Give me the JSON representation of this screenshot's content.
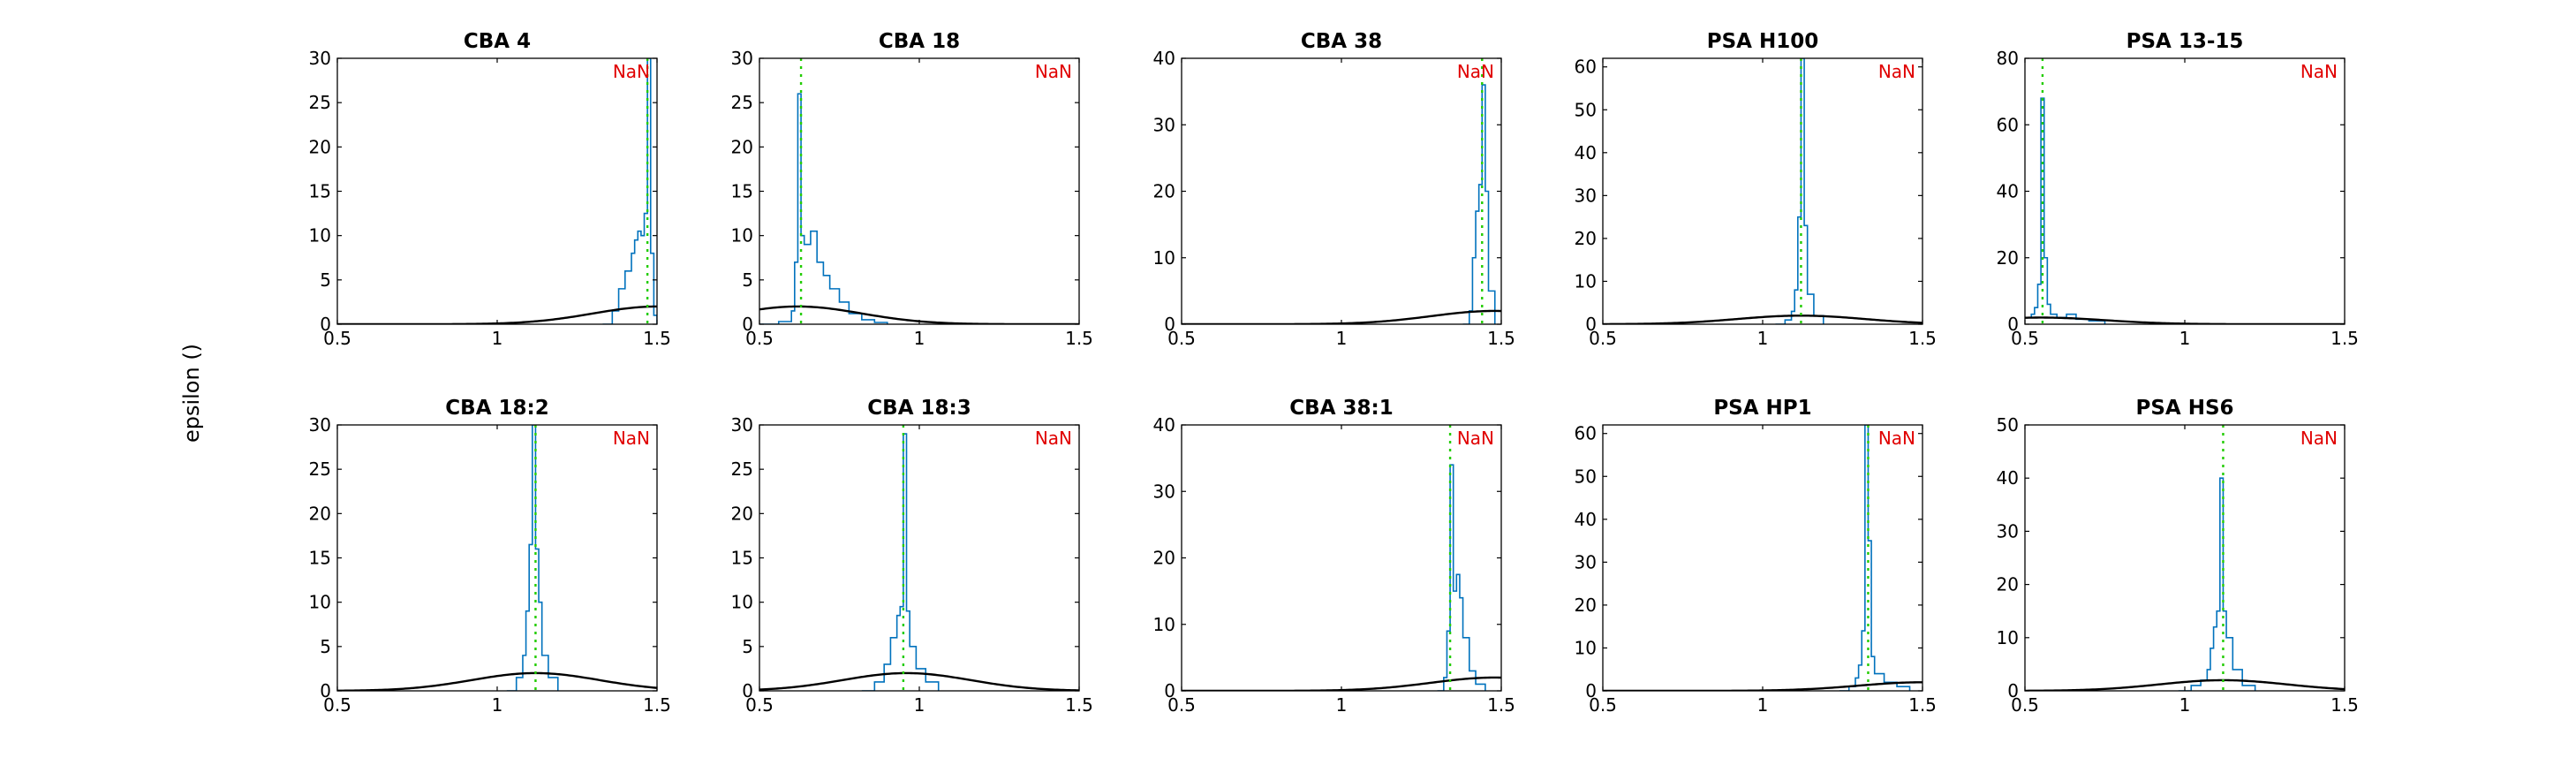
{
  "figure": {
    "ylabel": "epsilon ()"
  },
  "chart_data": [
    {
      "type": "line",
      "title": "CBA 4",
      "annotation": "NaN",
      "xlim": [
        0.5,
        1.5
      ],
      "ylim": [
        0,
        30
      ],
      "xticks": [
        0.5,
        1,
        1.5
      ],
      "xtick_labels": [
        "0.5",
        "1",
        "1.5"
      ],
      "yticks": [
        0,
        5,
        10,
        15,
        20,
        25,
        30
      ],
      "ytick_labels": [
        "0",
        "5",
        "10",
        "15",
        "20",
        "25",
        "30"
      ],
      "series": [
        {
          "kind": "hist",
          "color": "#0072bd",
          "x": [
            1.33,
            1.36,
            1.38,
            1.4,
            1.42,
            1.43,
            1.44,
            1.45,
            1.46,
            1.47,
            1.48,
            1.49,
            1.5
          ],
          "y": [
            0,
            1.5,
            4,
            6,
            8,
            9.5,
            10.5,
            10,
            12.5,
            30,
            8,
            1,
            0
          ]
        },
        {
          "kind": "gaussian",
          "color": "#000000",
          "mean": 1.5,
          "sd": 0.2,
          "peak": 2
        },
        {
          "kind": "vline",
          "color": "#22cc00",
          "x": 1.47
        }
      ]
    },
    {
      "type": "line",
      "title": "CBA 18",
      "annotation": "NaN",
      "xlim": [
        0.5,
        1.5
      ],
      "ylim": [
        0,
        30
      ],
      "xticks": [
        0.5,
        1,
        1.5
      ],
      "xtick_labels": [
        "0.5",
        "1",
        "1.5"
      ],
      "yticks": [
        0,
        5,
        10,
        15,
        20,
        25,
        30
      ],
      "ytick_labels": [
        "0",
        "5",
        "10",
        "15",
        "20",
        "25",
        "30"
      ],
      "series": [
        {
          "kind": "hist",
          "color": "#0072bd",
          "x": [
            0.5,
            0.56,
            0.6,
            0.61,
            0.62,
            0.63,
            0.64,
            0.66,
            0.68,
            0.7,
            0.72,
            0.75,
            0.78,
            0.82,
            0.86,
            0.9
          ],
          "y": [
            0,
            0.3,
            1.5,
            7,
            26,
            10,
            9,
            10.5,
            7,
            5.5,
            4,
            2.5,
            1.2,
            0.5,
            0.2,
            0
          ]
        },
        {
          "kind": "gaussian",
          "color": "#000000",
          "mean": 0.62,
          "sd": 0.2,
          "peak": 2
        },
        {
          "kind": "vline",
          "color": "#22cc00",
          "x": 0.63
        }
      ]
    },
    {
      "type": "line",
      "title": "CBA 38",
      "annotation": "NaN",
      "xlim": [
        0.5,
        1.5
      ],
      "ylim": [
        0,
        40
      ],
      "xticks": [
        0.5,
        1,
        1.5
      ],
      "xtick_labels": [
        "0.5",
        "1",
        "1.5"
      ],
      "yticks": [
        0,
        10,
        20,
        30,
        40
      ],
      "ytick_labels": [
        "0",
        "10",
        "20",
        "30",
        "40"
      ],
      "series": [
        {
          "kind": "hist",
          "color": "#0072bd",
          "x": [
            1.38,
            1.4,
            1.41,
            1.42,
            1.43,
            1.44,
            1.45,
            1.46,
            1.48
          ],
          "y": [
            0,
            2,
            10,
            17,
            21,
            36,
            20,
            5,
            0
          ]
        },
        {
          "kind": "gaussian",
          "color": "#000000",
          "mean": 1.48,
          "sd": 0.2,
          "peak": 2
        },
        {
          "kind": "vline",
          "color": "#22cc00",
          "x": 1.44
        }
      ]
    },
    {
      "type": "line",
      "title": "PSA H100",
      "annotation": "NaN",
      "xlim": [
        0.5,
        1.5
      ],
      "ylim": [
        0,
        62
      ],
      "xticks": [
        0.5,
        1,
        1.5
      ],
      "xtick_labels": [
        "0.5",
        "1",
        "1.5"
      ],
      "yticks": [
        0,
        10,
        20,
        30,
        40,
        50,
        60
      ],
      "ytick_labels": [
        "0",
        "10",
        "20",
        "30",
        "40",
        "50",
        "60"
      ],
      "series": [
        {
          "kind": "hist",
          "color": "#0072bd",
          "x": [
            1.04,
            1.07,
            1.09,
            1.1,
            1.11,
            1.12,
            1.13,
            1.14,
            1.16,
            1.19
          ],
          "y": [
            0,
            1,
            3,
            8,
            25,
            62,
            23,
            7,
            2,
            0
          ]
        },
        {
          "kind": "gaussian",
          "color": "#000000",
          "mean": 1.12,
          "sd": 0.2,
          "peak": 2
        },
        {
          "kind": "vline",
          "color": "#22cc00",
          "x": 1.12
        }
      ]
    },
    {
      "type": "line",
      "title": "PSA 13-15",
      "annotation": "NaN",
      "xlim": [
        0.5,
        1.5
      ],
      "ylim": [
        0,
        80
      ],
      "xticks": [
        0.5,
        1,
        1.5
      ],
      "xtick_labels": [
        "0.5",
        "1",
        "1.5"
      ],
      "yticks": [
        0,
        20,
        40,
        60,
        80
      ],
      "ytick_labels": [
        "0",
        "20",
        "40",
        "60",
        "80"
      ],
      "series": [
        {
          "kind": "hist",
          "color": "#0072bd",
          "x": [
            0.5,
            0.52,
            0.53,
            0.54,
            0.55,
            0.56,
            0.57,
            0.58,
            0.6,
            0.63,
            0.66,
            0.7,
            0.75
          ],
          "y": [
            2,
            3,
            5,
            12,
            68,
            20,
            6,
            3,
            2,
            3,
            1.5,
            1,
            0
          ]
        },
        {
          "kind": "gaussian",
          "color": "#000000",
          "mean": 0.55,
          "sd": 0.2,
          "peak": 2
        },
        {
          "kind": "vline",
          "color": "#22cc00",
          "x": 0.555
        }
      ]
    },
    {
      "type": "line",
      "title": "CBA 18:2",
      "annotation": "NaN",
      "xlim": [
        0.5,
        1.5
      ],
      "ylim": [
        0,
        30
      ],
      "xticks": [
        0.5,
        1,
        1.5
      ],
      "xtick_labels": [
        "0.5",
        "1",
        "1.5"
      ],
      "yticks": [
        0,
        5,
        10,
        15,
        20,
        25,
        30
      ],
      "ytick_labels": [
        "0",
        "5",
        "10",
        "15",
        "20",
        "25",
        "30"
      ],
      "series": [
        {
          "kind": "hist",
          "color": "#0072bd",
          "x": [
            1.03,
            1.06,
            1.08,
            1.09,
            1.1,
            1.11,
            1.12,
            1.13,
            1.14,
            1.16,
            1.19
          ],
          "y": [
            0,
            1.5,
            4,
            9,
            16.5,
            30,
            16,
            10,
            4,
            1.5,
            0
          ]
        },
        {
          "kind": "gaussian",
          "color": "#000000",
          "mean": 1.12,
          "sd": 0.2,
          "peak": 2
        },
        {
          "kind": "vline",
          "color": "#22cc00",
          "x": 1.12
        }
      ]
    },
    {
      "type": "line",
      "title": "CBA 18:3",
      "annotation": "NaN",
      "xlim": [
        0.5,
        1.5
      ],
      "ylim": [
        0,
        30
      ],
      "xticks": [
        0.5,
        1,
        1.5
      ],
      "xtick_labels": [
        "0.5",
        "1",
        "1.5"
      ],
      "yticks": [
        0,
        5,
        10,
        15,
        20,
        25,
        30
      ],
      "ytick_labels": [
        "0",
        "5",
        "10",
        "15",
        "20",
        "25",
        "30"
      ],
      "series": [
        {
          "kind": "hist",
          "color": "#0072bd",
          "x": [
            0.82,
            0.86,
            0.89,
            0.91,
            0.93,
            0.94,
            0.95,
            0.96,
            0.97,
            0.99,
            1.02,
            1.06
          ],
          "y": [
            0,
            1,
            3,
            6,
            8.5,
            9.5,
            29,
            9,
            5,
            2.5,
            1,
            0
          ]
        },
        {
          "kind": "gaussian",
          "color": "#000000",
          "mean": 0.96,
          "sd": 0.2,
          "peak": 2
        },
        {
          "kind": "vline",
          "color": "#22cc00",
          "x": 0.95
        }
      ]
    },
    {
      "type": "line",
      "title": "CBA 38:1",
      "annotation": "NaN",
      "xlim": [
        0.5,
        1.5
      ],
      "ylim": [
        0,
        40
      ],
      "xticks": [
        0.5,
        1,
        1.5
      ],
      "xtick_labels": [
        "0.5",
        "1",
        "1.5"
      ],
      "yticks": [
        0,
        10,
        20,
        30,
        40
      ],
      "ytick_labels": [
        "0",
        "10",
        "20",
        "30",
        "40"
      ],
      "series": [
        {
          "kind": "hist",
          "color": "#0072bd",
          "x": [
            1.3,
            1.32,
            1.33,
            1.34,
            1.35,
            1.36,
            1.37,
            1.38,
            1.4,
            1.42,
            1.45
          ],
          "y": [
            0,
            2,
            9,
            34,
            15,
            17.5,
            14,
            8,
            3,
            1,
            0
          ]
        },
        {
          "kind": "gaussian",
          "color": "#000000",
          "mean": 1.48,
          "sd": 0.2,
          "peak": 2
        },
        {
          "kind": "vline",
          "color": "#22cc00",
          "x": 1.34
        }
      ]
    },
    {
      "type": "line",
      "title": "PSA HP1",
      "annotation": "NaN",
      "xlim": [
        0.5,
        1.5
      ],
      "ylim": [
        0,
        62
      ],
      "xticks": [
        0.5,
        1,
        1.5
      ],
      "xtick_labels": [
        "0.5",
        "1",
        "1.5"
      ],
      "yticks": [
        0,
        10,
        20,
        30,
        40,
        50,
        60
      ],
      "ytick_labels": [
        "0",
        "10",
        "20",
        "30",
        "40",
        "50",
        "60"
      ],
      "series": [
        {
          "kind": "hist",
          "color": "#0072bd",
          "x": [
            1.24,
            1.27,
            1.29,
            1.3,
            1.31,
            1.32,
            1.33,
            1.34,
            1.35,
            1.38,
            1.42,
            1.46
          ],
          "y": [
            0,
            1,
            3,
            6,
            14,
            62,
            35,
            8,
            4,
            2,
            1,
            0
          ]
        },
        {
          "kind": "gaussian",
          "color": "#000000",
          "mean": 1.5,
          "sd": 0.2,
          "peak": 2
        },
        {
          "kind": "vline",
          "color": "#22cc00",
          "x": 1.33
        }
      ]
    },
    {
      "type": "line",
      "title": "PSA HS6",
      "annotation": "NaN",
      "xlim": [
        0.5,
        1.5
      ],
      "ylim": [
        0,
        50
      ],
      "xticks": [
        0.5,
        1,
        1.5
      ],
      "xtick_labels": [
        "0.5",
        "1",
        "1.5"
      ],
      "yticks": [
        0,
        10,
        20,
        30,
        40,
        50
      ],
      "ytick_labels": [
        "0",
        "10",
        "20",
        "30",
        "40",
        "50"
      ],
      "series": [
        {
          "kind": "hist",
          "color": "#0072bd",
          "x": [
            0.98,
            1.02,
            1.05,
            1.07,
            1.08,
            1.09,
            1.1,
            1.11,
            1.12,
            1.13,
            1.15,
            1.18,
            1.22
          ],
          "y": [
            0,
            1,
            2,
            4,
            8,
            12,
            15,
            40,
            15,
            10,
            4,
            1,
            0
          ]
        },
        {
          "kind": "gaussian",
          "color": "#000000",
          "mean": 1.12,
          "sd": 0.2,
          "peak": 2
        },
        {
          "kind": "vline",
          "color": "#22cc00",
          "x": 1.12
        }
      ]
    }
  ]
}
